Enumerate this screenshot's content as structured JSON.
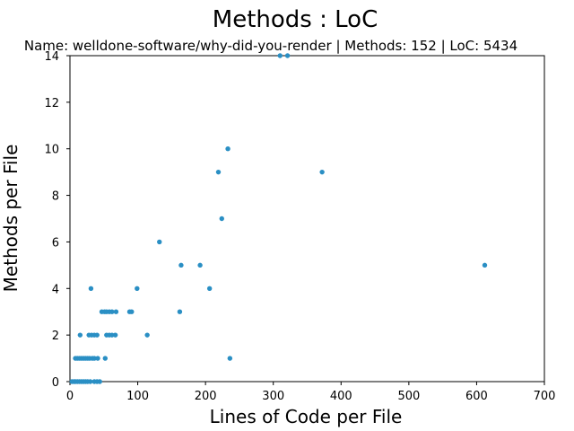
{
  "chart_data": {
    "type": "scatter",
    "title": "Methods : LoC",
    "subtitle": "Name: welldone-software/why-did-you-render | Methods: 152 | LoC: 5434",
    "xlabel": "Lines of Code per File",
    "ylabel": "Methods per File",
    "xlim": [
      0,
      700
    ],
    "ylim": [
      0,
      14
    ],
    "x_ticks": [
      0,
      100,
      200,
      300,
      400,
      500,
      600,
      700
    ],
    "y_ticks": [
      0,
      2,
      4,
      6,
      8,
      10,
      12,
      14
    ],
    "grid": false,
    "marker_color": "#2a8fc4",
    "points": [
      {
        "x": 3,
        "y": 0
      },
      {
        "x": 6,
        "y": 0
      },
      {
        "x": 8,
        "y": 0
      },
      {
        "x": 11,
        "y": 0
      },
      {
        "x": 14,
        "y": 0
      },
      {
        "x": 17,
        "y": 0
      },
      {
        "x": 20,
        "y": 0
      },
      {
        "x": 23,
        "y": 0
      },
      {
        "x": 26,
        "y": 0
      },
      {
        "x": 30,
        "y": 0
      },
      {
        "x": 36,
        "y": 0
      },
      {
        "x": 40,
        "y": 0
      },
      {
        "x": 44,
        "y": 0
      },
      {
        "x": 8,
        "y": 1
      },
      {
        "x": 11,
        "y": 1
      },
      {
        "x": 14,
        "y": 1
      },
      {
        "x": 17,
        "y": 1
      },
      {
        "x": 20,
        "y": 1
      },
      {
        "x": 23,
        "y": 1
      },
      {
        "x": 26,
        "y": 1
      },
      {
        "x": 29,
        "y": 1
      },
      {
        "x": 33,
        "y": 1
      },
      {
        "x": 36,
        "y": 1
      },
      {
        "x": 41,
        "y": 1
      },
      {
        "x": 52,
        "y": 1
      },
      {
        "x": 236,
        "y": 1
      },
      {
        "x": 15,
        "y": 2
      },
      {
        "x": 28,
        "y": 2
      },
      {
        "x": 32,
        "y": 2
      },
      {
        "x": 36,
        "y": 2
      },
      {
        "x": 40,
        "y": 2
      },
      {
        "x": 54,
        "y": 2
      },
      {
        "x": 58,
        "y": 2
      },
      {
        "x": 62,
        "y": 2
      },
      {
        "x": 67,
        "y": 2
      },
      {
        "x": 114,
        "y": 2
      },
      {
        "x": 47,
        "y": 3
      },
      {
        "x": 51,
        "y": 3
      },
      {
        "x": 54,
        "y": 3
      },
      {
        "x": 58,
        "y": 3
      },
      {
        "x": 62,
        "y": 3
      },
      {
        "x": 68,
        "y": 3
      },
      {
        "x": 88,
        "y": 3
      },
      {
        "x": 91,
        "y": 3
      },
      {
        "x": 162,
        "y": 3
      },
      {
        "x": 31,
        "y": 4
      },
      {
        "x": 99,
        "y": 4
      },
      {
        "x": 206,
        "y": 4
      },
      {
        "x": 164,
        "y": 5
      },
      {
        "x": 192,
        "y": 5
      },
      {
        "x": 612,
        "y": 5
      },
      {
        "x": 132,
        "y": 6
      },
      {
        "x": 224,
        "y": 7
      },
      {
        "x": 219,
        "y": 9
      },
      {
        "x": 372,
        "y": 9
      },
      {
        "x": 233,
        "y": 10
      },
      {
        "x": 310,
        "y": 14
      },
      {
        "x": 321,
        "y": 14
      }
    ]
  }
}
